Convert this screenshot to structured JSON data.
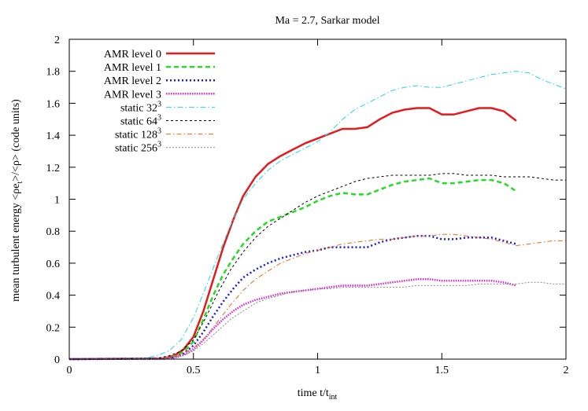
{
  "chart_data": {
    "type": "line",
    "title": "Ma = 2.7, Sarkar model",
    "xlabel": {
      "text": "time t/t",
      "sub": "int"
    },
    "ylabel": {
      "prefix": "mean turbulent energy <ρe",
      "sub": "t",
      "suffix": ">/<ρ> (code units)"
    },
    "xlim": [
      0,
      2
    ],
    "ylim": [
      0,
      2
    ],
    "xticks": [
      0,
      0.5,
      1,
      1.5,
      2
    ],
    "xtick_labels": [
      "0",
      "0.5",
      "1",
      "1.5",
      "2"
    ],
    "yticks": [
      0,
      0.2,
      0.4,
      0.6,
      0.8,
      1,
      1.2,
      1.4,
      1.6,
      1.8,
      2
    ],
    "ytick_labels": [
      "0",
      "0.2",
      "0.4",
      "0.6",
      "0.8",
      "1",
      "1.2",
      "1.4",
      "1.6",
      "1.8",
      "2"
    ],
    "legend_position": "top-left",
    "series": [
      {
        "name": "AMR level 0",
        "label_base": "AMR level 0",
        "label_sup": "",
        "color": "#e41a1c",
        "width": 2.5,
        "dash": "",
        "x": [
          0,
          0.38,
          0.42,
          0.46,
          0.5,
          0.54,
          0.58,
          0.62,
          0.66,
          0.7,
          0.75,
          0.8,
          0.85,
          0.9,
          0.95,
          1.0,
          1.05,
          1.1,
          1.15,
          1.2,
          1.25,
          1.3,
          1.35,
          1.4,
          1.45,
          1.5,
          1.55,
          1.6,
          1.65,
          1.7,
          1.75,
          1.8
        ],
        "y": [
          0,
          0.005,
          0.02,
          0.06,
          0.14,
          0.3,
          0.5,
          0.7,
          0.87,
          1.02,
          1.14,
          1.22,
          1.27,
          1.31,
          1.35,
          1.38,
          1.41,
          1.44,
          1.44,
          1.45,
          1.5,
          1.54,
          1.56,
          1.57,
          1.57,
          1.53,
          1.53,
          1.55,
          1.57,
          1.57,
          1.55,
          1.49
        ]
      },
      {
        "name": "AMR level 1",
        "label_base": "AMR level 1",
        "label_sup": "",
        "color": "#22dd22",
        "width": 2.5,
        "dash": "6,4",
        "x": [
          0,
          0.38,
          0.42,
          0.46,
          0.5,
          0.54,
          0.58,
          0.62,
          0.66,
          0.7,
          0.75,
          0.8,
          0.85,
          0.9,
          0.95,
          1.0,
          1.05,
          1.1,
          1.15,
          1.2,
          1.25,
          1.3,
          1.35,
          1.4,
          1.45,
          1.5,
          1.55,
          1.6,
          1.65,
          1.7,
          1.75,
          1.8
        ],
        "y": [
          0,
          0.004,
          0.015,
          0.045,
          0.11,
          0.25,
          0.4,
          0.53,
          0.63,
          0.72,
          0.8,
          0.86,
          0.89,
          0.92,
          0.95,
          0.99,
          1.02,
          1.04,
          1.03,
          1.03,
          1.06,
          1.09,
          1.11,
          1.12,
          1.13,
          1.1,
          1.1,
          1.11,
          1.12,
          1.12,
          1.1,
          1.05
        ]
      },
      {
        "name": "AMR level 2",
        "label_base": "AMR level 2",
        "label_sup": "",
        "color": "#1a1add",
        "width": 2.5,
        "dash": "2,3",
        "x": [
          0,
          0.38,
          0.42,
          0.46,
          0.5,
          0.54,
          0.58,
          0.62,
          0.66,
          0.7,
          0.75,
          0.8,
          0.85,
          0.9,
          0.95,
          1.0,
          1.05,
          1.1,
          1.15,
          1.2,
          1.25,
          1.3,
          1.35,
          1.4,
          1.45,
          1.5,
          1.55,
          1.6,
          1.65,
          1.7,
          1.75,
          1.8
        ],
        "y": [
          0,
          0.003,
          0.012,
          0.035,
          0.085,
          0.17,
          0.27,
          0.36,
          0.44,
          0.51,
          0.56,
          0.6,
          0.63,
          0.65,
          0.67,
          0.68,
          0.7,
          0.7,
          0.7,
          0.7,
          0.73,
          0.75,
          0.76,
          0.77,
          0.77,
          0.75,
          0.75,
          0.76,
          0.76,
          0.76,
          0.74,
          0.72
        ]
      },
      {
        "name": "AMR level 3",
        "label_base": "AMR level 3",
        "label_sup": "",
        "color": "#dd22dd",
        "width": 2.5,
        "dash": "1.5,1.5",
        "x": [
          0,
          0.38,
          0.42,
          0.46,
          0.5,
          0.54,
          0.58,
          0.62,
          0.66,
          0.7,
          0.75,
          0.8,
          0.85,
          0.9,
          0.95,
          1.0,
          1.05,
          1.1,
          1.15,
          1.2,
          1.25,
          1.3,
          1.35,
          1.4,
          1.45,
          1.5,
          1.55,
          1.6,
          1.65,
          1.7,
          1.75,
          1.8
        ],
        "y": [
          0,
          0.002,
          0.008,
          0.025,
          0.06,
          0.12,
          0.19,
          0.25,
          0.3,
          0.34,
          0.37,
          0.39,
          0.41,
          0.42,
          0.43,
          0.44,
          0.45,
          0.46,
          0.46,
          0.46,
          0.47,
          0.48,
          0.49,
          0.5,
          0.5,
          0.49,
          0.49,
          0.49,
          0.49,
          0.49,
          0.48,
          0.46
        ]
      },
      {
        "name": "static 32^3",
        "label_base": "static 32",
        "label_sup": "3",
        "color": "#22d8e8",
        "width": 1,
        "dash": "7,3,1.5,3",
        "x": [
          0,
          0.3,
          0.35,
          0.4,
          0.45,
          0.5,
          0.55,
          0.6,
          0.65,
          0.7,
          0.75,
          0.8,
          0.85,
          0.9,
          0.95,
          1.0,
          1.05,
          1.1,
          1.15,
          1.2,
          1.25,
          1.3,
          1.35,
          1.4,
          1.45,
          1.5,
          1.55,
          1.6,
          1.65,
          1.7,
          1.75,
          1.8,
          1.85,
          1.9,
          1.95,
          2.0
        ],
        "y": [
          0,
          0.005,
          0.02,
          0.05,
          0.12,
          0.26,
          0.45,
          0.65,
          0.84,
          1.0,
          1.1,
          1.18,
          1.24,
          1.28,
          1.32,
          1.36,
          1.42,
          1.5,
          1.56,
          1.6,
          1.64,
          1.68,
          1.7,
          1.71,
          1.7,
          1.7,
          1.72,
          1.74,
          1.76,
          1.78,
          1.79,
          1.8,
          1.79,
          1.75,
          1.72,
          1.69
        ]
      },
      {
        "name": "static 64^3",
        "label_base": "static 64",
        "label_sup": "3",
        "color": "#000000",
        "width": 1,
        "dash": "3,3",
        "x": [
          0,
          0.35,
          0.4,
          0.45,
          0.5,
          0.55,
          0.6,
          0.65,
          0.7,
          0.75,
          0.8,
          0.85,
          0.9,
          0.95,
          1.0,
          1.05,
          1.1,
          1.15,
          1.2,
          1.25,
          1.3,
          1.35,
          1.4,
          1.45,
          1.5,
          1.55,
          1.6,
          1.65,
          1.7,
          1.75,
          1.8,
          1.85,
          1.9,
          1.95,
          2.0
        ],
        "y": [
          0,
          0.005,
          0.02,
          0.05,
          0.12,
          0.26,
          0.42,
          0.56,
          0.67,
          0.76,
          0.83,
          0.88,
          0.93,
          0.98,
          1.02,
          1.05,
          1.08,
          1.11,
          1.13,
          1.14,
          1.15,
          1.15,
          1.15,
          1.15,
          1.16,
          1.16,
          1.15,
          1.15,
          1.15,
          1.14,
          1.14,
          1.14,
          1.13,
          1.12,
          1.12
        ]
      },
      {
        "name": "static 128^3",
        "label_base": "static 128",
        "label_sup": "3",
        "color": "#ee6a11",
        "width": 1,
        "dash": "6,3,1.5,3",
        "x": [
          0,
          0.35,
          0.4,
          0.45,
          0.5,
          0.55,
          0.6,
          0.65,
          0.7,
          0.75,
          0.8,
          0.85,
          0.9,
          0.95,
          1.0,
          1.05,
          1.1,
          1.15,
          1.2,
          1.25,
          1.3,
          1.35,
          1.4,
          1.45,
          1.5,
          1.55,
          1.6,
          1.65,
          1.7,
          1.75,
          1.8,
          1.85,
          1.9,
          1.95,
          2.0
        ],
        "y": [
          0,
          0.004,
          0.012,
          0.03,
          0.07,
          0.14,
          0.24,
          0.34,
          0.43,
          0.5,
          0.55,
          0.6,
          0.63,
          0.66,
          0.68,
          0.7,
          0.72,
          0.73,
          0.74,
          0.75,
          0.75,
          0.76,
          0.77,
          0.77,
          0.78,
          0.78,
          0.77,
          0.76,
          0.75,
          0.73,
          0.71,
          0.72,
          0.73,
          0.74,
          0.74
        ]
      },
      {
        "name": "static 256^3",
        "label_base": "static 256",
        "label_sup": "3",
        "color": "#888888",
        "width": 1,
        "dash": "2,2",
        "x": [
          0,
          0.38,
          0.42,
          0.46,
          0.5,
          0.55,
          0.6,
          0.65,
          0.7,
          0.75,
          0.8,
          0.85,
          0.9,
          0.95,
          1.0,
          1.05,
          1.1,
          1.15,
          1.2,
          1.25,
          1.3,
          1.35,
          1.4,
          1.45,
          1.5,
          1.55,
          1.6,
          1.65,
          1.7,
          1.75,
          1.8,
          1.85,
          1.9,
          1.95,
          2.0
        ],
        "y": [
          0,
          0.003,
          0.01,
          0.025,
          0.05,
          0.11,
          0.18,
          0.25,
          0.3,
          0.35,
          0.38,
          0.4,
          0.42,
          0.43,
          0.44,
          0.44,
          0.45,
          0.45,
          0.45,
          0.45,
          0.45,
          0.45,
          0.46,
          0.46,
          0.46,
          0.46,
          0.46,
          0.47,
          0.47,
          0.47,
          0.47,
          0.48,
          0.48,
          0.47,
          0.47
        ]
      }
    ]
  }
}
